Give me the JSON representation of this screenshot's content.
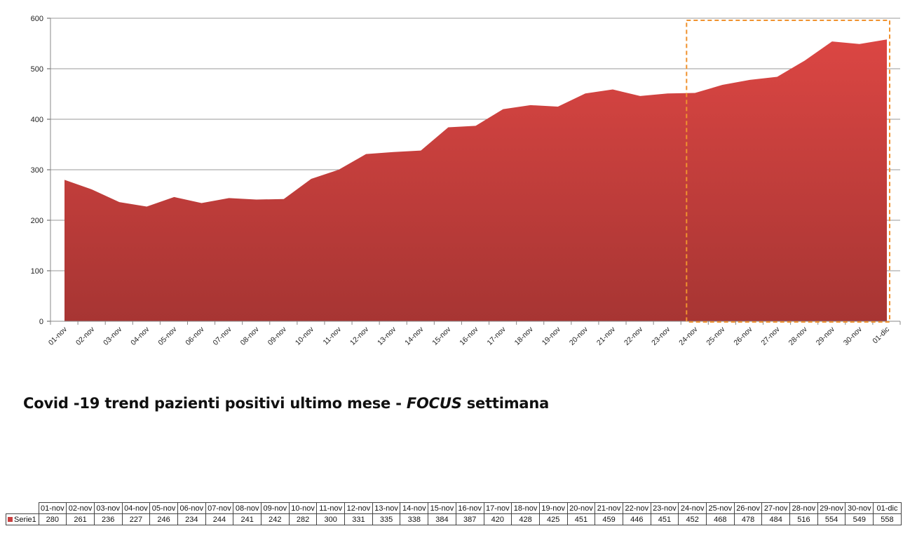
{
  "title": {
    "prefix": "Covid -19 trend pazienti positivi ultimo mese - ",
    "emphasis": "FOCUS",
    "suffix": " settimana"
  },
  "chart_data": {
    "type": "area",
    "title": "Covid -19 trend pazienti positivi ultimo mese - FOCUS settimana",
    "xlabel": "",
    "ylabel": "",
    "ylim": [
      0,
      600
    ],
    "yticks": [
      0,
      100,
      200,
      300,
      400,
      500,
      600
    ],
    "grid": true,
    "categories": [
      "01-nov",
      "02-nov",
      "03-nov",
      "04-nov",
      "05-nov",
      "06-nov",
      "07-nov",
      "08-nov",
      "09-nov",
      "10-nov",
      "11-nov",
      "12-nov",
      "13-nov",
      "14-nov",
      "15-nov",
      "16-nov",
      "17-nov",
      "18-nov",
      "19-nov",
      "20-nov",
      "21-nov",
      "22-nov",
      "23-nov",
      "24-nov",
      "25-nov",
      "26-nov",
      "27-nov",
      "28-nov",
      "29-nov",
      "30-nov",
      "01-dic"
    ],
    "series": [
      {
        "name": "Serie1",
        "values": [
          280,
          261,
          236,
          227,
          246,
          234,
          244,
          241,
          242,
          282,
          300,
          331,
          335,
          338,
          384,
          387,
          420,
          428,
          425,
          451,
          459,
          446,
          451,
          452,
          468,
          478,
          484,
          516,
          554,
          549,
          558
        ]
      }
    ],
    "highlight": {
      "from": "24-nov",
      "to": "01-dic",
      "style": "dashed",
      "color": "#f0922e"
    },
    "fill_color_top": "#db4643",
    "fill_color_bottom": "#a73533",
    "grid_color": "#9a9a9a"
  }
}
